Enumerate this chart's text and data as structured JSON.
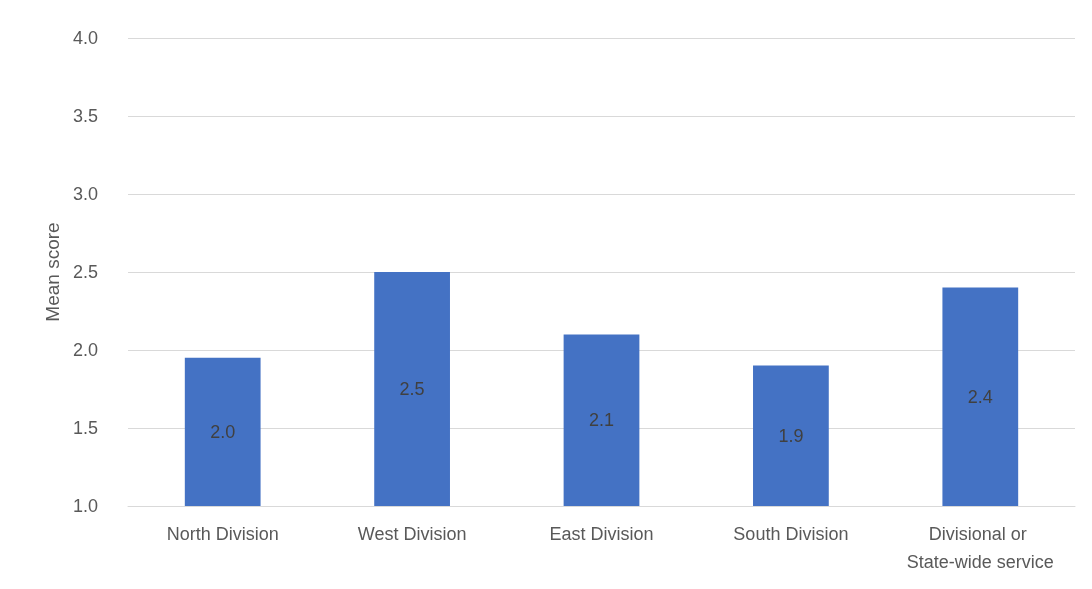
{
  "chart_data": {
    "type": "bar",
    "ylabel": "Mean score",
    "categories": [
      "North Division",
      "West Division",
      "East Division",
      "South Division",
      "Divisional or State-wide service"
    ],
    "values": [
      1.95,
      2.5,
      2.1,
      1.9,
      2.4
    ],
    "value_labels": [
      "2.0",
      "2.5",
      "2.1",
      "1.9",
      "2.4"
    ],
    "color": "#4472c4",
    "ylim": [
      1.0,
      4.0
    ],
    "yticks": [
      {
        "value": 1.0,
        "label": "1.0"
      },
      {
        "value": 1.5,
        "label": "1.5"
      },
      {
        "value": 2.0,
        "label": "2.0"
      },
      {
        "value": 2.5,
        "label": "2.5"
      },
      {
        "value": 3.0,
        "label": "3.0"
      },
      {
        "value": 3.5,
        "label": "3.5"
      },
      {
        "value": 4.0,
        "label": "4.0"
      }
    ],
    "grid": true
  }
}
